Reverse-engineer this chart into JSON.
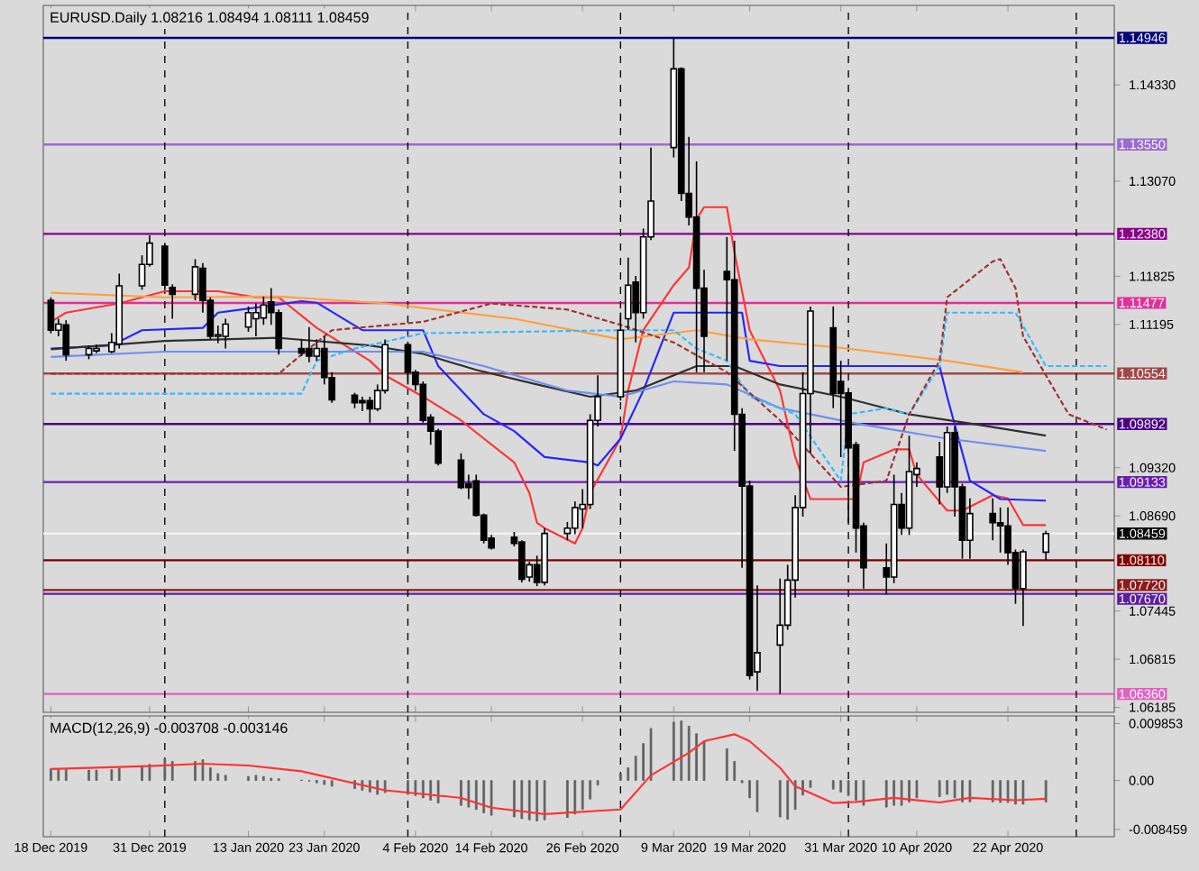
{
  "chart_data": [
    {
      "type": "candlestick",
      "title": "EURUSD.Daily 1.08216 1.08494 1.08111 1.08459",
      "x": [
        "2019-12-18",
        "2019-12-19",
        "2019-12-20",
        "2019-12-23",
        "2019-12-24",
        "2019-12-26",
        "2019-12-27",
        "2019-12-30",
        "2019-12-31",
        "2020-01-02",
        "2020-01-03",
        "2020-01-06",
        "2020-01-07",
        "2020-01-08",
        "2020-01-09",
        "2020-01-10",
        "2020-01-13",
        "2020-01-14",
        "2020-01-15",
        "2020-01-16",
        "2020-01-17",
        "2020-01-20",
        "2020-01-21",
        "2020-01-22",
        "2020-01-23",
        "2020-01-24",
        "2020-01-27",
        "2020-01-28",
        "2020-01-29",
        "2020-01-30",
        "2020-01-31",
        "2020-02-03",
        "2020-02-04",
        "2020-02-05",
        "2020-02-06",
        "2020-02-07",
        "2020-02-10",
        "2020-02-11",
        "2020-02-12",
        "2020-02-13",
        "2020-02-14",
        "2020-02-17",
        "2020-02-18",
        "2020-02-19",
        "2020-02-20",
        "2020-02-21",
        "2020-02-24",
        "2020-02-25",
        "2020-02-26",
        "2020-02-27",
        "2020-02-28",
        "2020-03-02",
        "2020-03-03",
        "2020-03-04",
        "2020-03-05",
        "2020-03-06",
        "2020-03-09",
        "2020-03-10",
        "2020-03-11",
        "2020-03-12",
        "2020-03-13",
        "2020-03-16",
        "2020-03-17",
        "2020-03-18",
        "2020-03-19",
        "2020-03-20",
        "2020-03-23",
        "2020-03-24",
        "2020-03-25",
        "2020-03-26",
        "2020-03-27",
        "2020-03-30",
        "2020-03-31",
        "2020-04-01",
        "2020-04-02",
        "2020-04-03",
        "2020-04-06",
        "2020-04-07",
        "2020-04-08",
        "2020-04-09",
        "2020-04-10",
        "2020-04-13",
        "2020-04-14",
        "2020-04-15",
        "2020-04-16",
        "2020-04-17",
        "2020-04-20",
        "2020-04-21",
        "2020-04-22",
        "2020-04-23",
        "2020-04-24",
        "2020-04-27"
      ],
      "ohlc": [
        [
          1.1151,
          1.1155,
          1.1108,
          1.1112
        ],
        [
          1.1112,
          1.1127,
          1.1104,
          1.112
        ],
        [
          1.1119,
          1.1125,
          1.1072,
          1.108
        ],
        [
          1.108,
          1.1092,
          1.1074,
          1.1088
        ],
        [
          1.1085,
          1.1093,
          1.1082,
          1.1088
        ],
        [
          1.1084,
          1.1108,
          1.1082,
          1.1096
        ],
        [
          1.1094,
          1.1186,
          1.1088,
          1.117
        ],
        [
          1.117,
          1.121,
          1.1165,
          1.1198
        ],
        [
          1.1198,
          1.1236,
          1.1195,
          1.1226
        ],
        [
          1.1222,
          1.1226,
          1.1167,
          1.1171
        ],
        [
          1.1168,
          1.1172,
          1.1127,
          1.1159
        ],
        [
          1.1159,
          1.1205,
          1.1151,
          1.1195
        ],
        [
          1.1193,
          1.12,
          1.1135,
          1.1151
        ],
        [
          1.1151,
          1.1155,
          1.11,
          1.1104
        ],
        [
          1.1104,
          1.1118,
          1.1095,
          1.1106
        ],
        [
          1.1104,
          1.1127,
          1.1088,
          1.112
        ],
        [
          1.1116,
          1.1143,
          1.111,
          1.1135
        ],
        [
          1.1127,
          1.1147,
          1.1104,
          1.1135
        ],
        [
          1.1128,
          1.1156,
          1.1119,
          1.1145
        ],
        [
          1.1149,
          1.1167,
          1.1119,
          1.1135
        ],
        [
          1.1135,
          1.1139,
          1.108,
          1.1088
        ],
        [
          1.1088,
          1.11,
          1.1078,
          1.1082
        ],
        [
          1.1088,
          1.1116,
          1.107,
          1.1078
        ],
        [
          1.1078,
          1.11,
          1.1072,
          1.1088
        ],
        [
          1.1088,
          1.1104,
          1.1041,
          1.105
        ],
        [
          1.105,
          1.1057,
          1.1017,
          1.1021
        ],
        [
          1.1027,
          1.103,
          1.101,
          1.1017
        ],
        [
          1.102,
          1.1025,
          1.1006,
          1.1017
        ],
        [
          1.102,
          1.1025,
          1.0991,
          1.1009
        ],
        [
          1.1009,
          1.1041,
          1.1006,
          1.1033
        ],
        [
          1.1033,
          1.11,
          1.1029,
          1.1093
        ],
        [
          1.1093,
          1.1097,
          1.1041,
          1.1057
        ],
        [
          1.1057,
          1.106,
          1.1033,
          1.1041
        ],
        [
          1.1041,
          1.1045,
          1.0991,
          1.0994
        ],
        [
          1.0998,
          1.1002,
          1.0962,
          1.098
        ],
        [
          1.098,
          1.0983,
          1.0935,
          1.0938
        ],
        [
          1.0942,
          1.0951,
          1.0904,
          1.0906
        ],
        [
          1.0911,
          1.0923,
          1.0891,
          1.0906
        ],
        [
          1.0915,
          1.0923,
          1.0868,
          1.087
        ],
        [
          1.087,
          1.0872,
          1.0833,
          1.0837
        ],
        [
          1.084,
          1.0844,
          1.0825,
          1.0827
        ],
        [
          1.0841,
          1.0848,
          1.0829,
          1.0833
        ],
        [
          1.0835,
          1.0837,
          1.0782,
          1.0786
        ],
        [
          1.0789,
          1.0809,
          1.0783,
          1.0805
        ],
        [
          1.0805,
          1.0817,
          1.0777,
          1.0782
        ],
        [
          1.0782,
          1.0853,
          1.0778,
          1.0846
        ],
        [
          1.0846,
          1.0861,
          1.0837,
          1.0853
        ],
        [
          1.0853,
          1.0888,
          1.0845,
          1.088
        ],
        [
          1.0878,
          1.0904,
          1.0853,
          1.0884
        ],
        [
          1.0884,
          1.1002,
          1.0878,
          1.0994
        ],
        [
          1.0994,
          1.1053,
          1.0986,
          1.1025
        ],
        [
          1.1025,
          1.1135,
          1.102,
          1.1112
        ],
        [
          1.1127,
          1.1207,
          1.1112,
          1.1171
        ],
        [
          1.1175,
          1.1183,
          1.1096,
          1.1135
        ],
        [
          1.1135,
          1.1245,
          1.1127,
          1.1234
        ],
        [
          1.1234,
          1.1351,
          1.123,
          1.1281
        ],
        [
          1.1351,
          1.1495,
          1.1338,
          1.1454
        ],
        [
          1.1454,
          1.1456,
          1.1281,
          1.1291
        ],
        [
          1.1291,
          1.1365,
          1.1249,
          1.126
        ],
        [
          1.126,
          1.1333,
          1.1057,
          1.1167
        ],
        [
          1.1167,
          1.1191,
          1.1057,
          1.1104
        ],
        [
          1.1189,
          1.1234,
          1.1072,
          1.1178
        ],
        [
          1.1178,
          1.1229,
          1.0954,
          1.1002
        ],
        [
          1.1002,
          1.101,
          1.0801,
          1.0908
        ],
        [
          1.0908,
          1.0915,
          1.0655,
          1.066
        ],
        [
          1.0665,
          1.0778,
          1.064,
          1.069
        ],
        [
          1.07,
          1.0787,
          1.0636,
          1.0726
        ],
        [
          1.0726,
          1.0805,
          1.072,
          1.0785
        ],
        [
          1.0785,
          1.0896,
          1.0762,
          1.088
        ],
        [
          1.088,
          1.1057,
          1.0868,
          1.1029
        ],
        [
          1.1029,
          1.1143,
          1.095,
          1.1137
        ],
        [
          1.1115,
          1.1143,
          1.101,
          1.1029
        ],
        [
          1.1045,
          1.1072,
          1.0946,
          1.1029
        ],
        [
          1.103,
          1.1033,
          1.086,
          1.0958
        ],
        [
          1.0962,
          1.0966,
          1.0821,
          1.0853
        ],
        [
          1.0856,
          1.086,
          1.0774,
          1.0801
        ],
        [
          1.0801,
          1.0833,
          1.0766,
          1.0789
        ],
        [
          1.0789,
          1.0923,
          1.0781,
          1.0884
        ],
        [
          1.0884,
          1.0899,
          1.0844,
          1.0853
        ],
        [
          1.0853,
          1.0974,
          1.0844,
          1.0927
        ],
        [
          1.0923,
          1.0939,
          1.0907,
          1.0931
        ],
        [
          1.0946,
          1.0966,
          1.0884,
          1.0907
        ],
        [
          1.0907,
          1.0986,
          1.0899,
          1.0978
        ],
        [
          1.0978,
          1.0986,
          1.0868,
          1.0907
        ],
        [
          1.0907,
          1.0911,
          1.0813,
          1.0837
        ],
        [
          1.0837,
          1.0892,
          1.0813,
          1.0872
        ],
        [
          1.0872,
          1.0892,
          1.0837,
          1.086
        ],
        [
          1.086,
          1.088,
          1.0821,
          1.0856
        ],
        [
          1.0856,
          1.088,
          1.0805,
          1.0821
        ],
        [
          1.0821,
          1.0825,
          1.0754,
          1.0774
        ],
        [
          1.0774,
          1.0825,
          1.0725,
          1.0822
        ],
        [
          1.08216,
          1.08494,
          1.08111,
          1.08459
        ]
      ],
      "series": [
        {
          "type": "line",
          "color": "#ff3333",
          "x": [
            "2019-12-18",
            "2019-12-20",
            "2019-12-27",
            "2020-01-02",
            "2020-01-09",
            "2020-01-14",
            "2020-01-17",
            "2020-01-22",
            "2020-01-29",
            "2020-01-31",
            "2020-02-05",
            "2020-02-10",
            "2020-02-12",
            "2020-02-17",
            "2020-02-19",
            "2020-02-20",
            "2020-02-21",
            "2020-02-25",
            "2020-02-26",
            "2020-02-27",
            "2020-03-02",
            "2020-03-03",
            "2020-03-05",
            "2020-03-09",
            "2020-03-11",
            "2020-03-12",
            "2020-03-13",
            "2020-03-16",
            "2020-03-17",
            "2020-03-19",
            "2020-03-23",
            "2020-03-25",
            "2020-03-27",
            "2020-04-02",
            "2020-04-03",
            "2020-04-07",
            "2020-04-09",
            "2020-04-10",
            "2020-04-14",
            "2020-04-16",
            "2020-04-20",
            "2020-04-22",
            "2020-04-24",
            "2020-04-27"
          ],
          "values": [
            1.1123,
            1.1135,
            1.1147,
            1.1163,
            1.1163,
            1.1155,
            1.1155,
            1.1115,
            1.1072,
            1.1053,
            1.1025,
            1.0994,
            1.0978,
            1.0939,
            1.0899,
            1.086,
            1.0853,
            1.0833,
            1.0853,
            1.0899,
            1.097,
            1.1033,
            1.1112,
            1.1171,
            1.1194,
            1.1257,
            1.1273,
            1.1273,
            1.1214,
            1.1112,
            1.1033,
            1.0946,
            1.0891,
            1.0891,
            1.0939,
            1.0956,
            1.0956,
            1.0923,
            1.0876,
            1.0876,
            1.0896,
            1.0892,
            1.0857,
            1.0857
          ]
        },
        {
          "type": "line",
          "color": "#2424ff",
          "x": [
            "2019-12-18",
            "2019-12-26",
            "2019-12-30",
            "2020-01-07",
            "2020-01-09",
            "2020-01-15",
            "2020-01-20",
            "2020-01-22",
            "2020-01-28",
            "2020-02-05",
            "2020-02-07",
            "2020-02-13",
            "2020-02-17",
            "2020-02-21",
            "2020-02-27",
            "2020-02-28",
            "2020-03-02",
            "2020-03-05",
            "2020-03-09",
            "2020-03-18",
            "2020-03-19",
            "2020-03-23",
            "2020-04-13",
            "2020-04-14",
            "2020-04-17",
            "2020-04-21",
            "2020-04-27"
          ],
          "values": [
            1.1088,
            1.1092,
            1.1112,
            1.1115,
            1.1135,
            1.1143,
            1.115,
            1.1148,
            1.1112,
            1.1112,
            1.1065,
            1.1002,
            1.098,
            1.0946,
            1.0939,
            1.0935,
            1.097,
            1.1033,
            1.1135,
            1.1135,
            1.1072,
            1.1065,
            1.1065,
            1.1025,
            1.0915,
            1.0891,
            1.0889
          ]
        },
        {
          "type": "line",
          "color": "#ffa040",
          "x": [
            "2019-12-18",
            "2020-01-02",
            "2020-01-17",
            "2020-01-31",
            "2020-02-17",
            "2020-03-02",
            "2020-03-12",
            "2020-03-19",
            "2020-03-31",
            "2020-04-14",
            "2020-04-24"
          ],
          "values": [
            1.1161,
            1.1155,
            1.1156,
            1.1147,
            1.1127,
            1.11,
            1.1112,
            1.11,
            1.1089,
            1.1072,
            1.1057
          ]
        },
        {
          "type": "line",
          "color": "#303030",
          "x": [
            "2019-12-18",
            "2020-01-02",
            "2020-01-17",
            "2020-01-29",
            "2020-02-05",
            "2020-02-12",
            "2020-02-20",
            "2020-02-27",
            "2020-03-04",
            "2020-03-12",
            "2020-03-17",
            "2020-03-23",
            "2020-03-31",
            "2020-04-09",
            "2020-04-17",
            "2020-04-27"
          ],
          "values": [
            1.1087,
            1.1098,
            1.1102,
            1.1092,
            1.1081,
            1.106,
            1.1041,
            1.1025,
            1.1033,
            1.1065,
            1.1065,
            1.1041,
            1.1025,
            1.1002,
            1.099,
            1.0974
          ]
        },
        {
          "type": "line",
          "color": "#6f8ff0",
          "x": [
            "2019-12-18",
            "2020-01-02",
            "2020-01-17",
            "2020-02-05",
            "2020-02-13",
            "2020-02-24",
            "2020-03-02",
            "2020-03-09",
            "2020-03-16",
            "2020-03-23",
            "2020-04-02",
            "2020-04-14",
            "2020-04-27"
          ],
          "values": [
            1.1077,
            1.1084,
            1.1084,
            1.1084,
            1.1065,
            1.1033,
            1.1025,
            1.1045,
            1.1041,
            1.101,
            1.099,
            1.097,
            1.0954
          ]
        },
        {
          "type": "line",
          "color": "#33bbff",
          "line_style": "dashed",
          "x": [
            "2019-12-18",
            "2020-01-20",
            "2020-01-22",
            "2020-01-27",
            "2020-02-05",
            "2020-03-02",
            "2020-03-09",
            "2020-03-12",
            "2020-03-16",
            "2020-03-19",
            "2020-03-25",
            "2020-03-31",
            "2020-04-01",
            "2020-04-06",
            "2020-04-09",
            "2020-04-13",
            "2020-04-14",
            "2020-04-23",
            "2020-04-27",
            "2020-05-05"
          ],
          "values": [
            1.1029,
            1.1029,
            1.1072,
            1.1088,
            1.1108,
            1.1112,
            1.1112,
            1.1088,
            1.1072,
            1.1025,
            1.1002,
            1.0915,
            1.1002,
            1.101,
            1.1002,
            1.1065,
            1.1135,
            1.1135,
            1.1065,
            1.1065
          ]
        },
        {
          "type": "line",
          "color": "#a03030",
          "line_style": "dashed",
          "x": [
            "2019-12-18",
            "2020-01-17",
            "2020-01-20",
            "2020-01-24",
            "2020-02-05",
            "2020-02-14",
            "2020-02-24",
            "2020-03-02",
            "2020-03-09",
            "2020-03-16",
            "2020-03-23",
            "2020-03-31",
            "2020-04-06",
            "2020-04-09",
            "2020-04-13",
            "2020-04-14",
            "2020-04-20",
            "2020-04-21",
            "2020-04-23",
            "2020-04-24",
            "2020-04-30",
            "2020-05-05"
          ],
          "values": [
            1.1055,
            1.1055,
            1.108,
            1.1112,
            1.1123,
            1.1147,
            1.1139,
            1.1119,
            1.1096,
            1.1057,
            1.0994,
            1.0907,
            1.0915,
            1.1002,
            1.1072,
            1.1155,
            1.1202,
            1.1205,
            1.1167,
            1.1104,
            1.1002,
            1.0982
          ]
        }
      ],
      "xlim": [
        "2019-12-17",
        "2020-05-06"
      ],
      "xticks": [
        {
          "value": "2019-12-18",
          "label": null
        },
        {
          "value": "2019-12-31",
          "label": null
        },
        {
          "value": "2020-01-13",
          "label": null
        },
        {
          "value": "2020-01-23",
          "label": null
        },
        {
          "value": "2020-02-04",
          "label": null
        },
        {
          "value": "2020-02-14",
          "label": null
        },
        {
          "value": "2020-02-26",
          "label": null
        },
        {
          "value": "2020-03-09",
          "label": null
        },
        {
          "value": "2020-03-19",
          "label": null
        },
        {
          "value": "2020-03-31",
          "label": null
        },
        {
          "value": "2020-04-10",
          "label": null
        },
        {
          "value": "2020-04-22",
          "label": null
        }
      ],
      "ylim": [
        1.0612,
        1.1537
      ],
      "yticks": [
        {
          "value": 1.1433,
          "label": "1.14330"
        },
        {
          "value": 1.1307,
          "label": "1.13070"
        },
        {
          "value": 1.11825,
          "label": "1.11825"
        },
        {
          "value": 1.11195,
          "label": "1.11195"
        },
        {
          "value": 1.0932,
          "label": "1.09320"
        },
        {
          "value": 1.0869,
          "label": "1.08690"
        },
        {
          "value": 1.07445,
          "label": "1.07445"
        },
        {
          "value": 1.06815,
          "label": "1.06815"
        },
        {
          "value": 1.06185,
          "label": "1.06185"
        }
      ],
      "tick_labels": "y",
      "ref_lines": [
        {
          "axis": "y",
          "value": 1.14946,
          "label": "1.14946",
          "color": "#000080"
        },
        {
          "axis": "y",
          "value": 1.1355,
          "label": "1.13550",
          "color": "#9a6ad0"
        },
        {
          "axis": "y",
          "value": 1.1238,
          "label": "1.12380",
          "color": "#8b008b"
        },
        {
          "axis": "y",
          "value": 1.11477,
          "label": "1.11477",
          "color": "#e0309a"
        },
        {
          "axis": "y",
          "value": 1.10554,
          "label": "1.10554",
          "color": "#a04848"
        },
        {
          "axis": "y",
          "value": 1.09892,
          "label": "1.09892",
          "color": "#4b0082"
        },
        {
          "axis": "y",
          "value": 1.09133,
          "label": "1.09133",
          "color": "#6a1fb0"
        },
        {
          "axis": "y",
          "value": 1.08459,
          "label": "1.08459",
          "color": "#f2f2f2"
        },
        {
          "axis": "y",
          "value": 1.0811,
          "label": "1.08110",
          "color": "#800000"
        },
        {
          "axis": "y",
          "value": 1.0772,
          "label": "1.07720",
          "color": "#8b1a1a"
        },
        {
          "axis": "y",
          "value": 1.0767,
          "label": "1.07670",
          "color": "#5d1fa0"
        },
        {
          "axis": "y",
          "value": 1.0636,
          "label": "1.06360",
          "color": "#e060c0"
        },
        {
          "axis": "x",
          "value": "2020-01-02",
          "color": "#000000",
          "line_style": "dashed"
        },
        {
          "axis": "x",
          "value": "2020-02-03",
          "color": "#000000",
          "line_style": "dashed"
        },
        {
          "axis": "x",
          "value": "2020-03-02",
          "color": "#000000",
          "line_style": "dashed"
        },
        {
          "axis": "x",
          "value": "2020-04-01",
          "color": "#000000",
          "line_style": "dashed"
        },
        {
          "axis": "x",
          "value": "2020-05-01",
          "color": "#000000",
          "line_style": "dashed"
        }
      ]
    },
    {
      "type": "bar",
      "title": "MACD(12,26,9) -0.003708 -0.003146",
      "x": [
        "2019-12-18",
        "2019-12-19",
        "2019-12-20",
        "2019-12-23",
        "2019-12-24",
        "2019-12-26",
        "2019-12-27",
        "2019-12-30",
        "2019-12-31",
        "2020-01-02",
        "2020-01-03",
        "2020-01-06",
        "2020-01-07",
        "2020-01-08",
        "2020-01-09",
        "2020-01-10",
        "2020-01-13",
        "2020-01-14",
        "2020-01-15",
        "2020-01-16",
        "2020-01-17",
        "2020-01-20",
        "2020-01-21",
        "2020-01-22",
        "2020-01-23",
        "2020-01-24",
        "2020-01-27",
        "2020-01-28",
        "2020-01-29",
        "2020-01-30",
        "2020-01-31",
        "2020-02-03",
        "2020-02-04",
        "2020-02-05",
        "2020-02-06",
        "2020-02-07",
        "2020-02-10",
        "2020-02-11",
        "2020-02-12",
        "2020-02-13",
        "2020-02-14",
        "2020-02-17",
        "2020-02-18",
        "2020-02-19",
        "2020-02-20",
        "2020-02-21",
        "2020-02-24",
        "2020-02-25",
        "2020-02-26",
        "2020-02-27",
        "2020-02-28",
        "2020-03-02",
        "2020-03-03",
        "2020-03-04",
        "2020-03-05",
        "2020-03-06",
        "2020-03-09",
        "2020-03-10",
        "2020-03-11",
        "2020-03-12",
        "2020-03-13",
        "2020-03-16",
        "2020-03-17",
        "2020-03-18",
        "2020-03-19",
        "2020-03-20",
        "2020-03-23",
        "2020-03-24",
        "2020-03-25",
        "2020-03-26",
        "2020-03-27",
        "2020-03-30",
        "2020-03-31",
        "2020-04-01",
        "2020-04-02",
        "2020-04-03",
        "2020-04-06",
        "2020-04-07",
        "2020-04-08",
        "2020-04-09",
        "2020-04-10",
        "2020-04-13",
        "2020-04-14",
        "2020-04-15",
        "2020-04-16",
        "2020-04-17",
        "2020-04-20",
        "2020-04-21",
        "2020-04-22",
        "2020-04-23",
        "2020-04-24",
        "2020-04-27"
      ],
      "series": [
        {
          "type": "bar",
          "color": "#606060",
          "values": [
            0.002,
            0.002,
            0.0019,
            0.0018,
            0.0018,
            0.0019,
            0.0021,
            0.0024,
            0.0028,
            0.0038,
            0.0033,
            0.0033,
            0.0036,
            0.0022,
            0.0012,
            0.0009,
            0.0007,
            0.0009,
            0.0007,
            0.0004,
            0.0003,
            0.0001,
            -0.0001,
            -0.0004,
            -0.0007,
            -0.001,
            -0.0014,
            -0.0017,
            -0.002,
            -0.0024,
            -0.0021,
            -0.0024,
            -0.0026,
            -0.003,
            -0.0034,
            -0.0039,
            -0.0043,
            -0.0046,
            -0.005,
            -0.0056,
            -0.006,
            -0.0063,
            -0.0066,
            -0.0068,
            -0.007,
            -0.0068,
            -0.0064,
            -0.0058,
            -0.005,
            -0.0032,
            -0.0008,
            0.0012,
            0.0022,
            0.0042,
            0.0064,
            0.009,
            0.0101,
            0.0103,
            0.0094,
            0.0081,
            0.0068,
            0.0055,
            0.0033,
            -0.0004,
            -0.003,
            -0.0054,
            -0.0063,
            -0.0067,
            -0.005,
            -0.0025,
            -0.0012,
            -0.0015,
            -0.002,
            -0.0026,
            -0.0034,
            -0.0043,
            -0.0046,
            -0.0043,
            -0.0043,
            -0.0037,
            -0.003,
            -0.0028,
            -0.0024,
            -0.003,
            -0.0037,
            -0.0037,
            -0.0037,
            -0.0038,
            -0.0038,
            -0.0041,
            -0.0041,
            -0.003708
          ]
        },
        {
          "type": "line",
          "color": "#ff3333",
          "x": [
            "2019-12-18",
            "2019-12-31",
            "2020-01-07",
            "2020-01-13",
            "2020-01-20",
            "2020-01-31",
            "2020-02-10",
            "2020-02-14",
            "2020-02-21",
            "2020-03-02",
            "2020-03-06",
            "2020-03-11",
            "2020-03-13",
            "2020-03-17",
            "2020-03-19",
            "2020-03-23",
            "2020-03-25",
            "2020-03-30",
            "2020-04-02",
            "2020-04-07",
            "2020-04-13",
            "2020-04-17",
            "2020-04-23",
            "2020-04-27"
          ],
          "values": [
            0.002,
            0.0025,
            0.0029,
            0.0026,
            0.0016,
            -0.0017,
            -0.003,
            -0.0047,
            -0.0058,
            -0.005,
            0.0009,
            0.0048,
            0.0068,
            0.008,
            0.0068,
            0.0022,
            -0.001,
            -0.0039,
            -0.0037,
            -0.003,
            -0.0038,
            -0.003,
            -0.0034,
            -0.003146
          ]
        }
      ],
      "xlim": [
        "2019-12-17",
        "2020-05-06"
      ],
      "xticks": [
        {
          "value": "2019-12-18",
          "label": "18 Dec 2019"
        },
        {
          "value": "2019-12-31",
          "label": "31 Dec 2019"
        },
        {
          "value": "2020-01-13",
          "label": "13 Jan 2020"
        },
        {
          "value": "2020-01-23",
          "label": "23 Jan 2020"
        },
        {
          "value": "2020-02-04",
          "label": "4 Feb 2020"
        },
        {
          "value": "2020-02-14",
          "label": "14 Feb 2020"
        },
        {
          "value": "2020-02-26",
          "label": "26 Feb 2020"
        },
        {
          "value": "2020-03-09",
          "label": "9 Mar 2020"
        },
        {
          "value": "2020-03-19",
          "label": "19 Mar 2020"
        },
        {
          "value": "2020-03-31",
          "label": "31 Mar 2020"
        },
        {
          "value": "2020-04-10",
          "label": "10 Apr 2020"
        },
        {
          "value": "2020-04-22",
          "label": "22 Apr 2020"
        }
      ],
      "ylim": [
        -0.00972,
        0.01117
      ],
      "yticks": [
        {
          "value": 0.009853,
          "label": "0.009853"
        },
        {
          "value": 0,
          "label": "0.00"
        },
        {
          "value": -0.008459,
          "label": "-0.008459"
        }
      ],
      "ref_lines": [
        {
          "axis": "x",
          "value": "2020-01-02",
          "color": "#000000",
          "line_style": "dashed"
        },
        {
          "axis": "x",
          "value": "2020-02-03",
          "color": "#000000",
          "line_style": "dashed"
        },
        {
          "axis": "x",
          "value": "2020-03-02",
          "color": "#000000",
          "line_style": "dashed"
        },
        {
          "axis": "x",
          "value": "2020-04-01",
          "color": "#000000",
          "line_style": "dashed"
        },
        {
          "axis": "x",
          "value": "2020-05-01",
          "color": "#000000",
          "line_style": "dashed"
        }
      ]
    }
  ]
}
